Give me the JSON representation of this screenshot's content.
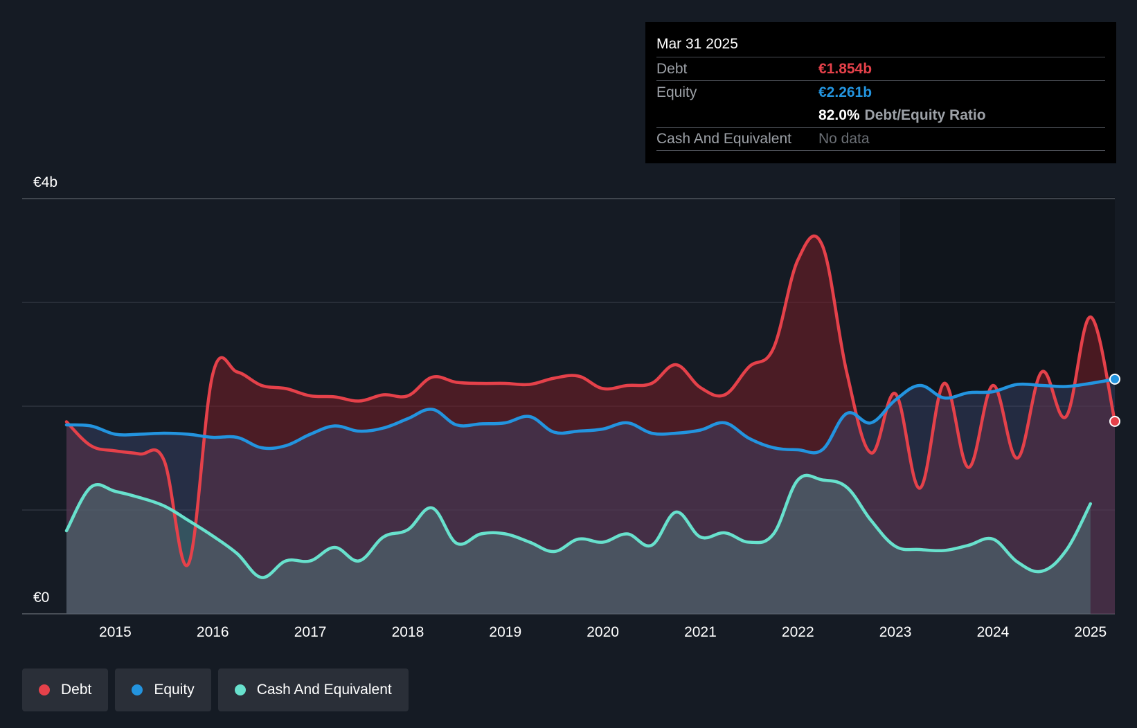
{
  "tooltip": {
    "date": "Mar 31 2025",
    "debt_label": "Debt",
    "debt_value": "€1.854b",
    "equity_label": "Equity",
    "equity_value": "€2.261b",
    "ratio_value": "82.0%",
    "ratio_label": "Debt/Equity Ratio",
    "cash_label": "Cash And Equivalent",
    "cash_value": "No data"
  },
  "legend": [
    {
      "label": "Debt",
      "color": "#e5414a"
    },
    {
      "label": "Equity",
      "color": "#2394df"
    },
    {
      "label": "Cash And Equivalent",
      "color": "#68e1cd"
    }
  ],
  "colors": {
    "debt": "#e5414a",
    "equity": "#2394df",
    "cash": "#68e1cd",
    "background": "#151b24"
  },
  "chart_data": {
    "type": "area",
    "y_unit": "€b",
    "ylim": [
      0,
      4
    ],
    "xlim": [
      2014.5,
      2025.25
    ],
    "y_tick_labels": [
      {
        "value": 4,
        "label": "€4b"
      },
      {
        "value": 0,
        "label": "€0"
      }
    ],
    "gridlines": [
      1,
      2,
      3,
      4
    ],
    "x_ticks": [
      2015,
      2016,
      2017,
      2018,
      2019,
      2020,
      2021,
      2022,
      2023,
      2024,
      2025
    ],
    "x_tick_labels": [
      "2015",
      "2016",
      "2017",
      "2018",
      "2019",
      "2020",
      "2021",
      "2022",
      "2023",
      "2024",
      "2025"
    ],
    "series": [
      {
        "name": "Debt",
        "x": [
          2014.5,
          2014.75,
          2015.0,
          2015.25,
          2015.5,
          2015.75,
          2016.0,
          2016.25,
          2016.5,
          2016.75,
          2017.0,
          2017.25,
          2017.5,
          2017.75,
          2018.0,
          2018.25,
          2018.5,
          2018.75,
          2019.0,
          2019.25,
          2019.5,
          2019.75,
          2020.0,
          2020.25,
          2020.5,
          2020.75,
          2021.0,
          2021.25,
          2021.5,
          2021.75,
          2022.0,
          2022.25,
          2022.5,
          2022.75,
          2023.0,
          2023.25,
          2023.5,
          2023.75,
          2024.0,
          2024.25,
          2024.5,
          2024.75,
          2025.0,
          2025.25
        ],
        "values": [
          1.85,
          1.62,
          1.57,
          1.54,
          1.48,
          0.48,
          2.31,
          2.33,
          2.2,
          2.17,
          2.1,
          2.09,
          2.05,
          2.11,
          2.1,
          2.28,
          2.23,
          2.22,
          2.22,
          2.21,
          2.27,
          2.29,
          2.17,
          2.2,
          2.22,
          2.4,
          2.18,
          2.11,
          2.38,
          2.56,
          3.41,
          3.55,
          2.33,
          1.55,
          2.12,
          1.21,
          2.22,
          1.41,
          2.2,
          1.5,
          2.33,
          1.9,
          2.86,
          1.854
        ]
      },
      {
        "name": "Equity",
        "x": [
          2014.5,
          2014.75,
          2015.0,
          2015.25,
          2015.5,
          2015.75,
          2016.0,
          2016.25,
          2016.5,
          2016.75,
          2017.0,
          2017.25,
          2017.5,
          2017.75,
          2018.0,
          2018.25,
          2018.5,
          2018.75,
          2019.0,
          2019.25,
          2019.5,
          2019.75,
          2020.0,
          2020.25,
          2020.5,
          2020.75,
          2021.0,
          2021.25,
          2021.5,
          2021.75,
          2022.0,
          2022.25,
          2022.5,
          2022.75,
          2023.0,
          2023.25,
          2023.5,
          2023.75,
          2024.0,
          2024.25,
          2024.5,
          2024.75,
          2025.0,
          2025.25
        ],
        "values": [
          1.82,
          1.81,
          1.73,
          1.73,
          1.74,
          1.73,
          1.7,
          1.7,
          1.6,
          1.62,
          1.73,
          1.81,
          1.76,
          1.79,
          1.88,
          1.97,
          1.82,
          1.83,
          1.84,
          1.9,
          1.75,
          1.76,
          1.78,
          1.84,
          1.74,
          1.74,
          1.77,
          1.84,
          1.69,
          1.6,
          1.58,
          1.58,
          1.93,
          1.84,
          2.06,
          2.2,
          2.08,
          2.13,
          2.14,
          2.21,
          2.2,
          2.19,
          2.22,
          2.261
        ]
      },
      {
        "name": "Cash And Equivalent",
        "x": [
          2014.5,
          2014.75,
          2015.0,
          2015.25,
          2015.5,
          2015.75,
          2016.0,
          2016.25,
          2016.5,
          2016.75,
          2017.0,
          2017.25,
          2017.5,
          2017.75,
          2018.0,
          2018.25,
          2018.5,
          2018.75,
          2019.0,
          2019.25,
          2019.5,
          2019.75,
          2020.0,
          2020.25,
          2020.5,
          2020.75,
          2021.0,
          2021.25,
          2021.5,
          2021.75,
          2022.0,
          2022.25,
          2022.5,
          2022.75,
          2023.0,
          2023.25,
          2023.5,
          2023.75,
          2024.0,
          2024.25,
          2024.5,
          2024.75,
          2025.0
        ],
        "values": [
          0.8,
          1.22,
          1.18,
          1.12,
          1.04,
          0.9,
          0.75,
          0.58,
          0.35,
          0.51,
          0.51,
          0.64,
          0.51,
          0.74,
          0.81,
          1.02,
          0.68,
          0.77,
          0.77,
          0.69,
          0.6,
          0.72,
          0.69,
          0.77,
          0.66,
          0.98,
          0.74,
          0.78,
          0.69,
          0.77,
          1.29,
          1.29,
          1.22,
          0.9,
          0.65,
          0.62,
          0.61,
          0.66,
          0.72,
          0.5,
          0.41,
          0.61,
          1.06
        ]
      }
    ],
    "end_markers": [
      "Debt",
      "Equity"
    ]
  }
}
